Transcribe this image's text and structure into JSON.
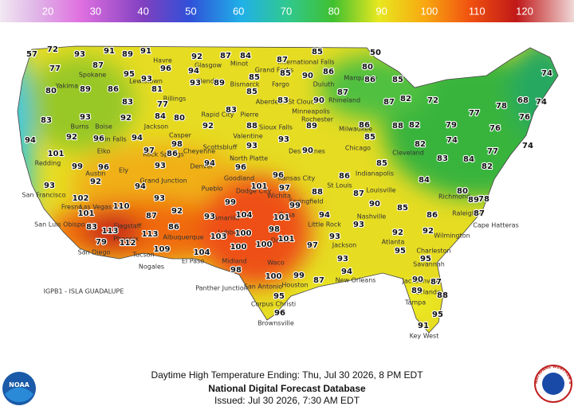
{
  "legend": {
    "ticks": [
      20,
      30,
      40,
      50,
      60,
      70,
      80,
      90,
      100,
      110,
      120
    ]
  },
  "temperatures": [
    72,
    57,
    93,
    91,
    91,
    96,
    92,
    87,
    84,
    87,
    85,
    50,
    80,
    74,
    77,
    87,
    89,
    95,
    93,
    94,
    85,
    85,
    90,
    86,
    86,
    85,
    80,
    89,
    86,
    83,
    81,
    77,
    93,
    89,
    85,
    83,
    90,
    87,
    87,
    82,
    72,
    78,
    68,
    74,
    83,
    93,
    92,
    84,
    80,
    92,
    83,
    88,
    89,
    86,
    88,
    82,
    79,
    77,
    76,
    76,
    94,
    92,
    96,
    94,
    98,
    93,
    93,
    85,
    82,
    74,
    74,
    101,
    99,
    96,
    97,
    93,
    86,
    94,
    90,
    77,
    82,
    83,
    84,
    96,
    96,
    86,
    85,
    84,
    93,
    92,
    94,
    101,
    97,
    88,
    87,
    80,
    78,
    102,
    110,
    93,
    99,
    104,
    99,
    94,
    90,
    85,
    86,
    89,
    101,
    87,
    92,
    93,
    101,
    93,
    92,
    87,
    83,
    113,
    113,
    86,
    103,
    100,
    98,
    101,
    93,
    92,
    79,
    112,
    109,
    104,
    100,
    100,
    97,
    93,
    95,
    95,
    98,
    100,
    99,
    94,
    87,
    90,
    87,
    95,
    89,
    88,
    95,
    96,
    91
  ],
  "places": [
    "Havre",
    "Glasgow",
    "Minot",
    "International Falls",
    "Spokane",
    "Lewistown",
    "Glendive",
    "Bismarck",
    "Grand Forks",
    "Fargo",
    "Duluth",
    "Marquette",
    "Yakima",
    "Billings",
    "Aberdeen",
    "St Cloud",
    "Rhineland",
    "Burns",
    "Boise",
    "Jackson",
    "Rapid City",
    "Pierre",
    "Minneapolis",
    "Rochester",
    "Milwaukee",
    "Sioux Falls",
    "Casper",
    "Twin Falls",
    "Redding",
    "Chicago",
    "Valentine",
    "Des Moines",
    "Cleveland",
    "Scottsbluff",
    "Rock Springs",
    "North Platte",
    "Cheyenne",
    "Denver",
    "Elko",
    "Austin",
    "Ely",
    "Goodland",
    "Kansas City",
    "Indianapolis",
    "St Louis",
    "Louisville",
    "Richmond",
    "Fresno",
    "San Francisco",
    "Pueblo",
    "Grand Junction",
    "Dodge City",
    "Wichita",
    "Springfield",
    "Nashville",
    "Raleigh",
    "Cape Hatteras",
    "Las Vegas",
    "Flagstaff",
    "Albuquerque",
    "Amarillo",
    "Tulsa",
    "Little Rock",
    "Atlanta",
    "Wilmington",
    "San Luis Obispo",
    "San Diego",
    "Phoenix",
    "Tucson",
    "Nogales",
    "El Paso",
    "Lubbock",
    "Midland",
    "Dallas",
    "Waco",
    "Jackson",
    "Charleston",
    "Savannah",
    "Houston",
    "New Orleans",
    "Tampa",
    "San Antonio",
    "Corpus Christi",
    "Brownsville",
    "Key West",
    "Panther Junction",
    "Jacksonville",
    "Orlando"
  ],
  "offshore_label": "IGPB1 - ISLA GUADALUPE",
  "footer": {
    "caption": "Daytime High Temperature Ending: Thu, Jul 30 2026, 8 PM EDT",
    "database": "National Digital Forecast Database",
    "issued": "Issued: Jul 30 2026, 7:30 AM EDT"
  },
  "logos": {
    "noaa": "NOAA",
    "nws": "NATIONAL WEATHER SERVICE"
  }
}
